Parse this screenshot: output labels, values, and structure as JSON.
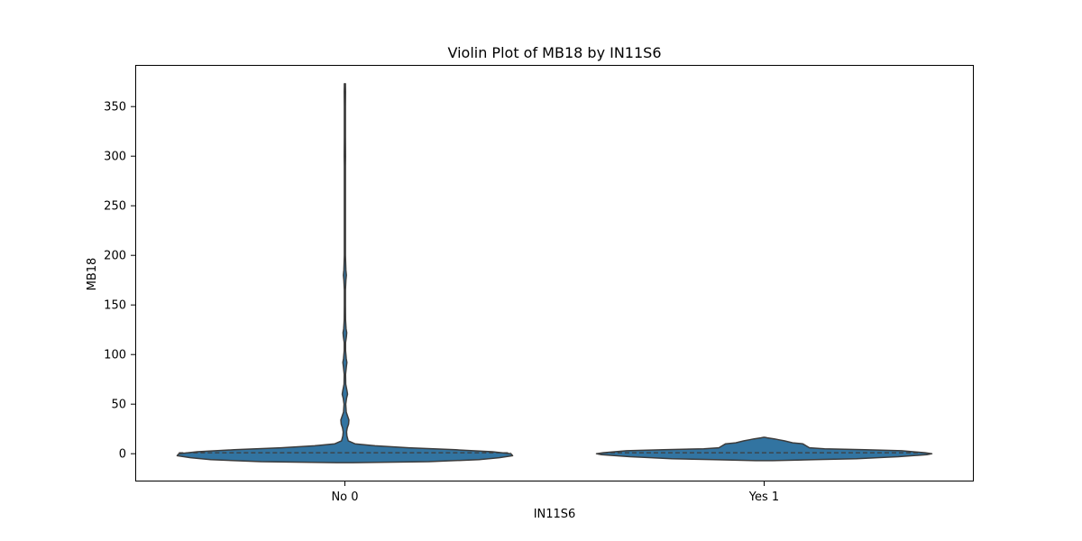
{
  "chart_data": {
    "type": "violin",
    "title": "Violin Plot of MB18 by IN11S6",
    "xlabel": "IN11S6",
    "ylabel": "MB18",
    "categories": [
      "No 0",
      "Yes 1"
    ],
    "ylim": [
      -28,
      392
    ],
    "yticks": [
      0,
      50,
      100,
      150,
      200,
      250,
      300,
      350
    ],
    "grid": false,
    "violin_color": "#3274a1",
    "edge_color": "#3c3c3c",
    "series": [
      {
        "category": "No 0",
        "median": 1,
        "profile": [
          [
            -9,
            0.05
          ],
          [
            -8,
            0.5
          ],
          [
            -6,
            0.8
          ],
          [
            -4,
            0.92
          ],
          [
            -2,
            1.0
          ],
          [
            0,
            0.99
          ],
          [
            2,
            0.88
          ],
          [
            4,
            0.66
          ],
          [
            6,
            0.38
          ],
          [
            8,
            0.18
          ],
          [
            10,
            0.06
          ],
          [
            13,
            0.02
          ],
          [
            18,
            0.012
          ],
          [
            22,
            0.01
          ],
          [
            26,
            0.014
          ],
          [
            30,
            0.022
          ],
          [
            34,
            0.024
          ],
          [
            38,
            0.016
          ],
          [
            42,
            0.008
          ],
          [
            50,
            0.005
          ],
          [
            56,
            0.01
          ],
          [
            60,
            0.016
          ],
          [
            64,
            0.012
          ],
          [
            70,
            0.005
          ],
          [
            80,
            0.004
          ],
          [
            88,
            0.009
          ],
          [
            92,
            0.012
          ],
          [
            96,
            0.008
          ],
          [
            104,
            0.004
          ],
          [
            112,
            0.004
          ],
          [
            118,
            0.009
          ],
          [
            122,
            0.011
          ],
          [
            126,
            0.007
          ],
          [
            135,
            0.004
          ],
          [
            150,
            0.003
          ],
          [
            165,
            0.003
          ],
          [
            175,
            0.006
          ],
          [
            180,
            0.009
          ],
          [
            185,
            0.006
          ],
          [
            200,
            0.003
          ],
          [
            230,
            0.003
          ],
          [
            260,
            0.003
          ],
          [
            290,
            0.003
          ],
          [
            300,
            0.004
          ],
          [
            320,
            0.003
          ],
          [
            350,
            0.003
          ],
          [
            365,
            0.004
          ],
          [
            371,
            0.003
          ],
          [
            373,
            0.001
          ]
        ]
      },
      {
        "category": "Yes 1",
        "median": 1,
        "profile": [
          [
            -7,
            0.05
          ],
          [
            -6,
            0.3
          ],
          [
            -5,
            0.55
          ],
          [
            -3,
            0.8
          ],
          [
            -1,
            0.97
          ],
          [
            0,
            1.0
          ],
          [
            1,
            0.96
          ],
          [
            3,
            0.82
          ],
          [
            4,
            0.6
          ],
          [
            5,
            0.36
          ],
          [
            6,
            0.27
          ],
          [
            8,
            0.25
          ],
          [
            10,
            0.23
          ],
          [
            11,
            0.17
          ],
          [
            13,
            0.12
          ],
          [
            14,
            0.09
          ],
          [
            15,
            0.06
          ],
          [
            16,
            0.02
          ],
          [
            16.5,
            0.002
          ]
        ]
      }
    ]
  }
}
